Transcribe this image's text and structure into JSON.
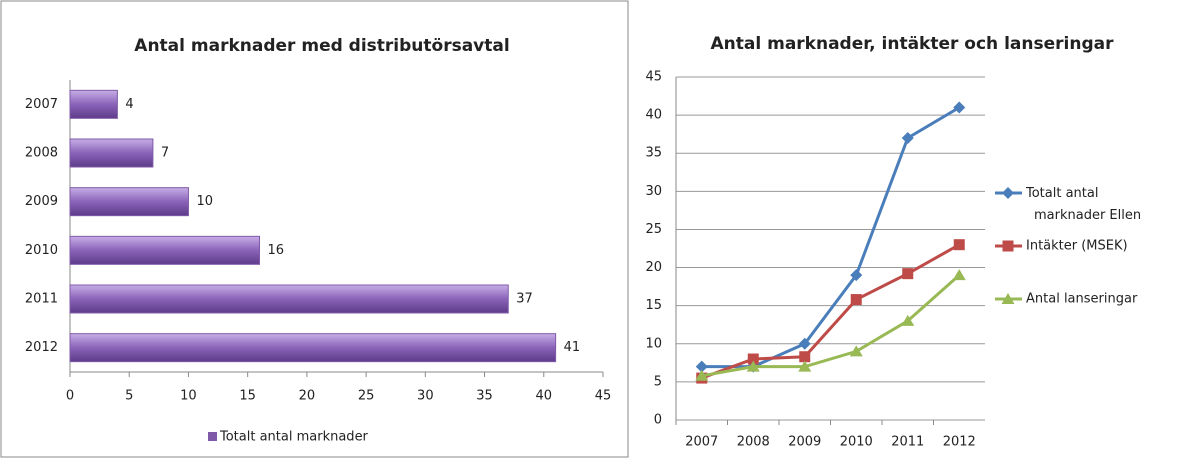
{
  "chart_data": [
    {
      "type": "hbar",
      "title": "Antal marknader med distributörsavtal",
      "categories": [
        "2007",
        "2008",
        "2009",
        "2010",
        "2011",
        "2012"
      ],
      "series": [
        {
          "name": "Totalt antal marknader",
          "color": "#7f5aa8",
          "values": [
            4,
            7,
            10,
            16,
            37,
            41
          ]
        }
      ],
      "xlim": [
        0,
        45
      ],
      "xticks": [
        0,
        5,
        10,
        15,
        20,
        25,
        30,
        35,
        40,
        45
      ],
      "legend": "bottom"
    },
    {
      "type": "line",
      "title": "Antal marknader, intäkter och lanseringar",
      "categories": [
        "2007",
        "2008",
        "2009",
        "2010",
        "2011",
        "2012"
      ],
      "series": [
        {
          "name": "Totalt antal marknader Ellen",
          "color": "#4a7ebb",
          "marker": "diamond",
          "values": [
            7,
            7,
            10,
            19,
            37,
            41
          ]
        },
        {
          "name": "Intäkter (MSEK)",
          "color": "#be4b48",
          "marker": "square",
          "values": [
            5.5,
            8,
            8.3,
            15.8,
            19.2,
            23
          ]
        },
        {
          "name": "Antal lanseringar",
          "color": "#98b954",
          "marker": "triangle",
          "values": [
            5.8,
            7,
            7,
            9,
            13,
            19
          ]
        }
      ],
      "ylim": [
        0,
        45
      ],
      "yticks": [
        0,
        5,
        10,
        15,
        20,
        25,
        30,
        35,
        40,
        45
      ],
      "grid": true,
      "legend": "right"
    }
  ]
}
